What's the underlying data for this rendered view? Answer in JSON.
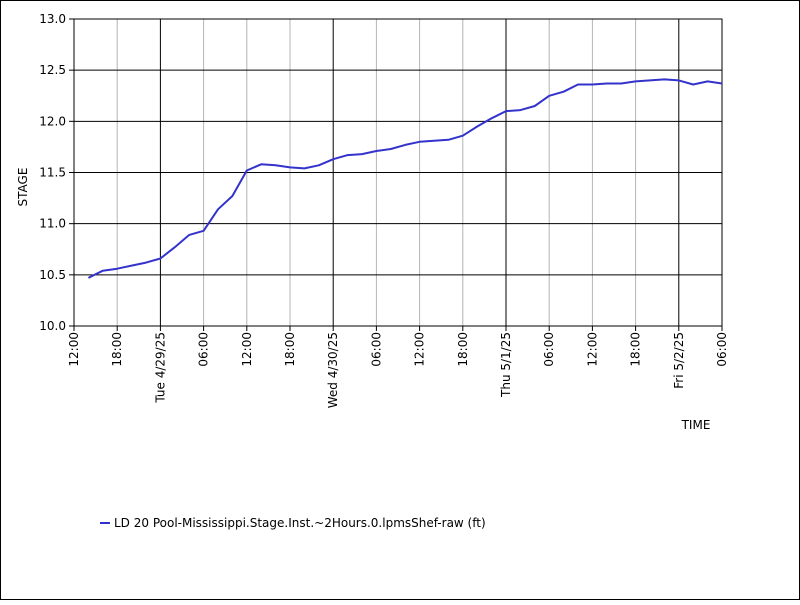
{
  "chart_data": {
    "type": "line",
    "ylabel": "STAGE",
    "xlabel": "TIME",
    "ylim": [
      10.0,
      13.0
    ],
    "yticks": [
      "10.0",
      "10.5",
      "11.0",
      "11.5",
      "12.0",
      "12.5",
      "13.0"
    ],
    "xlim_hours": [
      0,
      90
    ],
    "minor_x_ticks": [
      {
        "h": 0,
        "label": "12:00"
      },
      {
        "h": 6,
        "label": "18:00"
      },
      {
        "h": 18,
        "label": "06:00"
      },
      {
        "h": 24,
        "label": "12:00"
      },
      {
        "h": 30,
        "label": "18:00"
      },
      {
        "h": 42,
        "label": "06:00"
      },
      {
        "h": 48,
        "label": "12:00"
      },
      {
        "h": 54,
        "label": "18:00"
      },
      {
        "h": 66,
        "label": "06:00"
      },
      {
        "h": 72,
        "label": "12:00"
      },
      {
        "h": 78,
        "label": "18:00"
      },
      {
        "h": 90,
        "label": "06:00"
      }
    ],
    "major_x_ticks": [
      {
        "h": 12,
        "label": "Tue 4/29/25"
      },
      {
        "h": 36,
        "label": "Wed 4/30/25"
      },
      {
        "h": 60,
        "label": "Thu 5/1/25"
      },
      {
        "h": 84,
        "label": "Fri 5/2/25"
      }
    ],
    "grid": true,
    "legend_position": "bottom-left",
    "series": [
      {
        "name": "LD 20 Pool-Mississippi.Stage.Inst.~2Hours.0.lpmsShef-raw (ft)",
        "color": "#3333cc",
        "x": [
          2,
          4,
          6,
          8,
          10,
          12,
          14,
          16,
          18,
          20,
          22,
          24,
          26,
          28,
          30,
          32,
          34,
          36,
          38,
          40,
          42,
          44,
          46,
          48,
          50,
          52,
          54,
          56,
          58,
          60,
          62,
          64,
          66,
          68,
          70,
          72,
          74,
          76,
          78,
          80,
          82,
          84,
          86,
          88,
          90
        ],
        "y": [
          10.47,
          10.54,
          10.56,
          10.59,
          10.62,
          10.66,
          10.77,
          10.89,
          10.93,
          11.14,
          11.27,
          11.52,
          11.58,
          11.57,
          11.55,
          11.54,
          11.57,
          11.63,
          11.67,
          11.68,
          11.71,
          11.73,
          11.77,
          11.8,
          11.81,
          11.82,
          11.86,
          11.95,
          12.03,
          12.1,
          12.11,
          12.15,
          12.25,
          12.29,
          12.36,
          12.36,
          12.37,
          12.37,
          12.39,
          12.4,
          12.41,
          12.4,
          12.36,
          12.39,
          12.37
        ]
      }
    ]
  }
}
